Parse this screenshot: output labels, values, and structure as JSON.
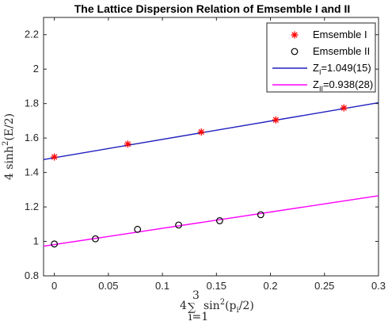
{
  "chart_data": {
    "type": "scatter",
    "title": "The Lattice Dispersion Relation of Emsemble I and II",
    "xlabel": "4 Σ_{i=1}^{3} sin²(p_i/2)",
    "ylabel": "4 sinh²(E/2)",
    "xlim": [
      -0.01,
      0.3
    ],
    "ylim": [
      0.8,
      2.3
    ],
    "xticks": [
      "0",
      "0.05",
      "0.1",
      "0.15",
      "0.2",
      "0.25",
      "0.3"
    ],
    "yticks": [
      "0.8",
      "1",
      "1.2",
      "1.4",
      "1.6",
      "1.8",
      "2",
      "2.2"
    ],
    "grid": false,
    "legend_position": "top-right",
    "series": [
      {
        "name": "Emsemble I",
        "marker": "asterisk",
        "color": "#ff0000",
        "x": [
          0.0,
          0.068,
          0.136,
          0.205,
          0.268
        ],
        "y": [
          1.49,
          1.565,
          1.635,
          1.705,
          1.775
        ]
      },
      {
        "name": "Emsemble II",
        "marker": "circle",
        "color": "#000000",
        "x": [
          0.0,
          0.038,
          0.077,
          0.115,
          0.153,
          0.191
        ],
        "y": [
          0.985,
          1.015,
          1.07,
          1.095,
          1.12,
          1.155
        ]
      }
    ],
    "fits": [
      {
        "name": "Z_I=1.049(15)",
        "label_main": "Z",
        "label_sub": "I",
        "label_value": "=1.049(15)",
        "color": "#1f1fbf",
        "x": [
          -0.01,
          0.3
        ],
        "y": [
          1.475,
          1.805
        ]
      },
      {
        "name": "Z_II=0.938(28)",
        "label_main": "Z",
        "label_sub": "II",
        "label_value": "=0.938(28)",
        "color": "#ff00ff",
        "x": [
          -0.01,
          0.3
        ],
        "y": [
          0.972,
          1.265
        ]
      }
    ]
  }
}
